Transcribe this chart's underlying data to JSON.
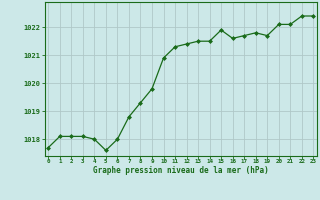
{
  "x": [
    0,
    1,
    2,
    3,
    4,
    5,
    6,
    7,
    8,
    9,
    10,
    11,
    12,
    13,
    14,
    15,
    16,
    17,
    18,
    19,
    20,
    21,
    22,
    23
  ],
  "y": [
    1017.7,
    1018.1,
    1018.1,
    1018.1,
    1018.0,
    1017.6,
    1018.0,
    1018.8,
    1019.3,
    1019.8,
    1020.9,
    1021.3,
    1021.4,
    1021.5,
    1021.5,
    1021.9,
    1021.6,
    1021.7,
    1021.8,
    1021.7,
    1022.1,
    1022.1,
    1022.4,
    1022.4
  ],
  "line_color": "#1a6b1a",
  "marker_color": "#1a6b1a",
  "bg_color": "#cce8e8",
  "grid_color": "#b0c8c8",
  "title": "Graphe pression niveau de la mer (hPa)",
  "ylim_min": 1017.4,
  "ylim_max": 1022.9,
  "xlim_min": -0.3,
  "xlim_max": 23.3,
  "yticks": [
    1018,
    1019,
    1020,
    1021,
    1022
  ],
  "xticks": [
    0,
    1,
    2,
    3,
    4,
    5,
    6,
    7,
    8,
    9,
    10,
    11,
    12,
    13,
    14,
    15,
    16,
    17,
    18,
    19,
    20,
    21,
    22,
    23
  ]
}
